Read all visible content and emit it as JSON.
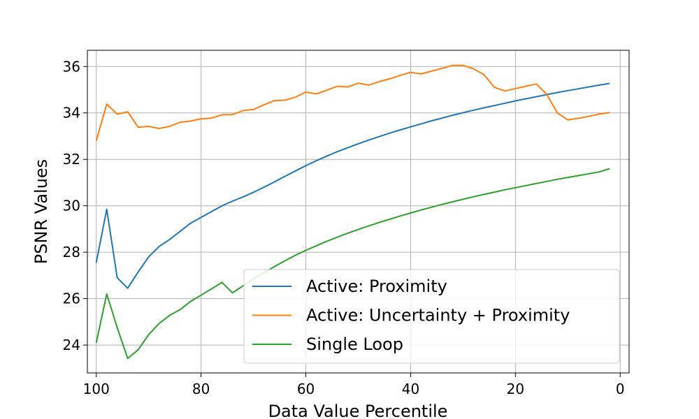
{
  "chart_data": {
    "type": "line",
    "title": "",
    "xlabel": "Data Value Percentile",
    "ylabel": "PSNR Values",
    "xlim": [
      101.7,
      -1.7
    ],
    "ylim": [
      22.8,
      36.7
    ],
    "x_reversed": true,
    "xticks": [
      100,
      80,
      60,
      40,
      20,
      0
    ],
    "yticks": [
      24,
      26,
      28,
      30,
      32,
      34,
      36
    ],
    "grid": true,
    "legend_position": "lower-right",
    "series": [
      {
        "name": "Active: Proximity",
        "color": "#1f77b4",
        "x": [
          100,
          98,
          96,
          94,
          92,
          90,
          88,
          86,
          84,
          82,
          80,
          78,
          76,
          74,
          72,
          70,
          68,
          66,
          64,
          62,
          60,
          58,
          56,
          54,
          52,
          50,
          48,
          46,
          44,
          42,
          40,
          38,
          36,
          34,
          32,
          30,
          28,
          26,
          24,
          22,
          20,
          18,
          16,
          14,
          12,
          10,
          8,
          6,
          4,
          2
        ],
        "y": [
          27.55,
          29.85,
          26.9,
          26.45,
          27.15,
          27.8,
          28.25,
          28.55,
          28.9,
          29.25,
          29.5,
          29.75,
          30.0,
          30.2,
          30.38,
          30.58,
          30.8,
          31.03,
          31.27,
          31.5,
          31.73,
          31.94,
          32.14,
          32.33,
          32.5,
          32.67,
          32.83,
          32.98,
          33.13,
          33.27,
          33.4,
          33.53,
          33.66,
          33.78,
          33.9,
          34.01,
          34.12,
          34.22,
          34.32,
          34.42,
          34.52,
          34.61,
          34.7,
          34.79,
          34.88,
          34.96,
          35.04,
          35.12,
          35.2,
          35.27
        ]
      },
      {
        "name": "Active: Uncertainty + Proximity",
        "color": "#ff7f0e",
        "x": [
          100,
          98,
          96,
          94,
          92,
          90,
          88,
          86,
          84,
          82,
          80,
          78,
          76,
          74,
          72,
          70,
          68,
          66,
          64,
          62,
          60,
          58,
          56,
          54,
          52,
          50,
          48,
          46,
          44,
          42,
          40,
          38,
          36,
          34,
          32,
          30,
          28,
          26,
          24,
          22,
          20,
          18,
          16,
          14,
          12,
          10,
          8,
          6,
          4,
          2
        ],
        "y": [
          32.8,
          34.38,
          33.95,
          34.05,
          33.38,
          33.42,
          33.33,
          33.42,
          33.6,
          33.65,
          33.75,
          33.78,
          33.92,
          33.93,
          34.1,
          34.15,
          34.35,
          34.53,
          34.55,
          34.68,
          34.9,
          34.82,
          34.98,
          35.15,
          35.12,
          35.28,
          35.2,
          35.35,
          35.47,
          35.62,
          35.75,
          35.68,
          35.8,
          35.92,
          36.05,
          36.05,
          35.9,
          35.65,
          35.1,
          34.95,
          35.05,
          35.15,
          35.25,
          34.8,
          34.0,
          33.7,
          33.77,
          33.85,
          33.95,
          34.02
        ]
      },
      {
        "name": "Single Loop",
        "color": "#2ca02c",
        "x": [
          100,
          98,
          96,
          94,
          92,
          90,
          88,
          86,
          84,
          82,
          80,
          78,
          76,
          74,
          72,
          70,
          68,
          66,
          64,
          62,
          60,
          58,
          56,
          54,
          52,
          50,
          48,
          46,
          44,
          42,
          40,
          38,
          36,
          34,
          32,
          30,
          28,
          26,
          24,
          22,
          20,
          18,
          16,
          14,
          12,
          10,
          8,
          6,
          4,
          2
        ],
        "y": [
          24.1,
          26.2,
          24.75,
          23.42,
          23.8,
          24.45,
          24.93,
          25.28,
          25.53,
          25.88,
          26.15,
          26.42,
          26.7,
          26.25,
          26.55,
          26.85,
          27.12,
          27.38,
          27.63,
          27.87,
          28.08,
          28.28,
          28.47,
          28.65,
          28.82,
          28.98,
          29.13,
          29.28,
          29.42,
          29.56,
          29.69,
          29.82,
          29.94,
          30.06,
          30.17,
          30.28,
          30.39,
          30.49,
          30.59,
          30.69,
          30.78,
          30.87,
          30.96,
          31.05,
          31.14,
          31.22,
          31.3,
          31.38,
          31.46,
          31.6
        ]
      }
    ]
  }
}
